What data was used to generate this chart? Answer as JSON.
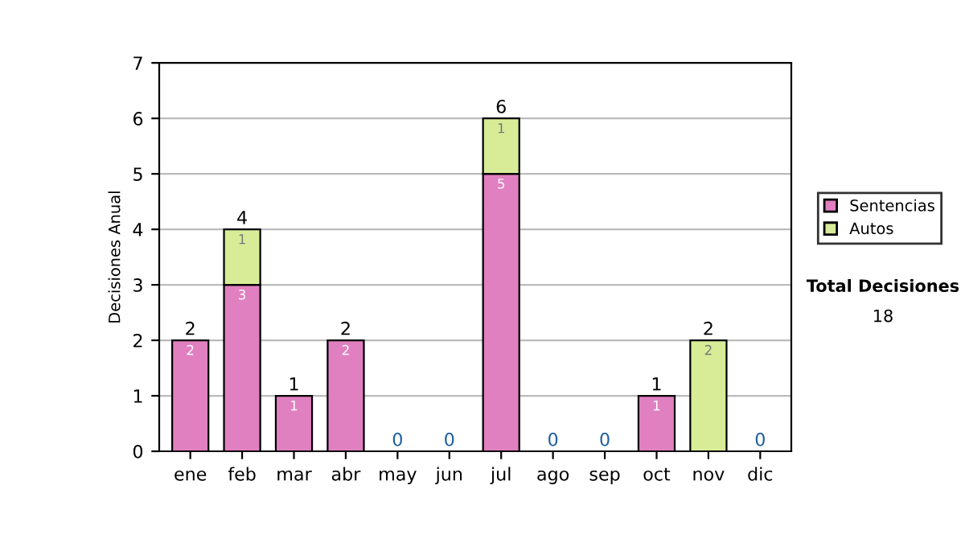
{
  "chart_data": {
    "type": "bar",
    "stacked": true,
    "ylabel": "Decisiones Anual",
    "categories": [
      "ene",
      "feb",
      "mar",
      "abr",
      "may",
      "jun",
      "jul",
      "ago",
      "sep",
      "oct",
      "nov",
      "dic"
    ],
    "series": [
      {
        "name": "Sentencias",
        "color": "#e080c0",
        "values": [
          2,
          3,
          1,
          2,
          0,
          0,
          5,
          0,
          0,
          1,
          0,
          0
        ],
        "value_labels": [
          "2",
          "3",
          "1",
          "2",
          null,
          null,
          "5",
          null,
          null,
          "1",
          null,
          null
        ]
      },
      {
        "name": "Autos",
        "color": "#d8ec98",
        "values": [
          0,
          1,
          0,
          0,
          0,
          0,
          1,
          0,
          0,
          0,
          2,
          0
        ],
        "value_labels": [
          null,
          "1",
          null,
          null,
          null,
          null,
          "1",
          null,
          null,
          null,
          "2",
          null
        ]
      }
    ],
    "totals": [
      "2",
      "4",
      "1",
      "2",
      "0",
      "0",
      "6",
      "0",
      "0",
      "1",
      "2",
      "0"
    ],
    "ylim": [
      0,
      7
    ],
    "yticks": [
      0,
      1,
      2,
      3,
      4,
      5,
      6,
      7
    ],
    "grid": "y",
    "legend": "right",
    "annotations": [
      "Total Decisiones",
      "18"
    ]
  }
}
